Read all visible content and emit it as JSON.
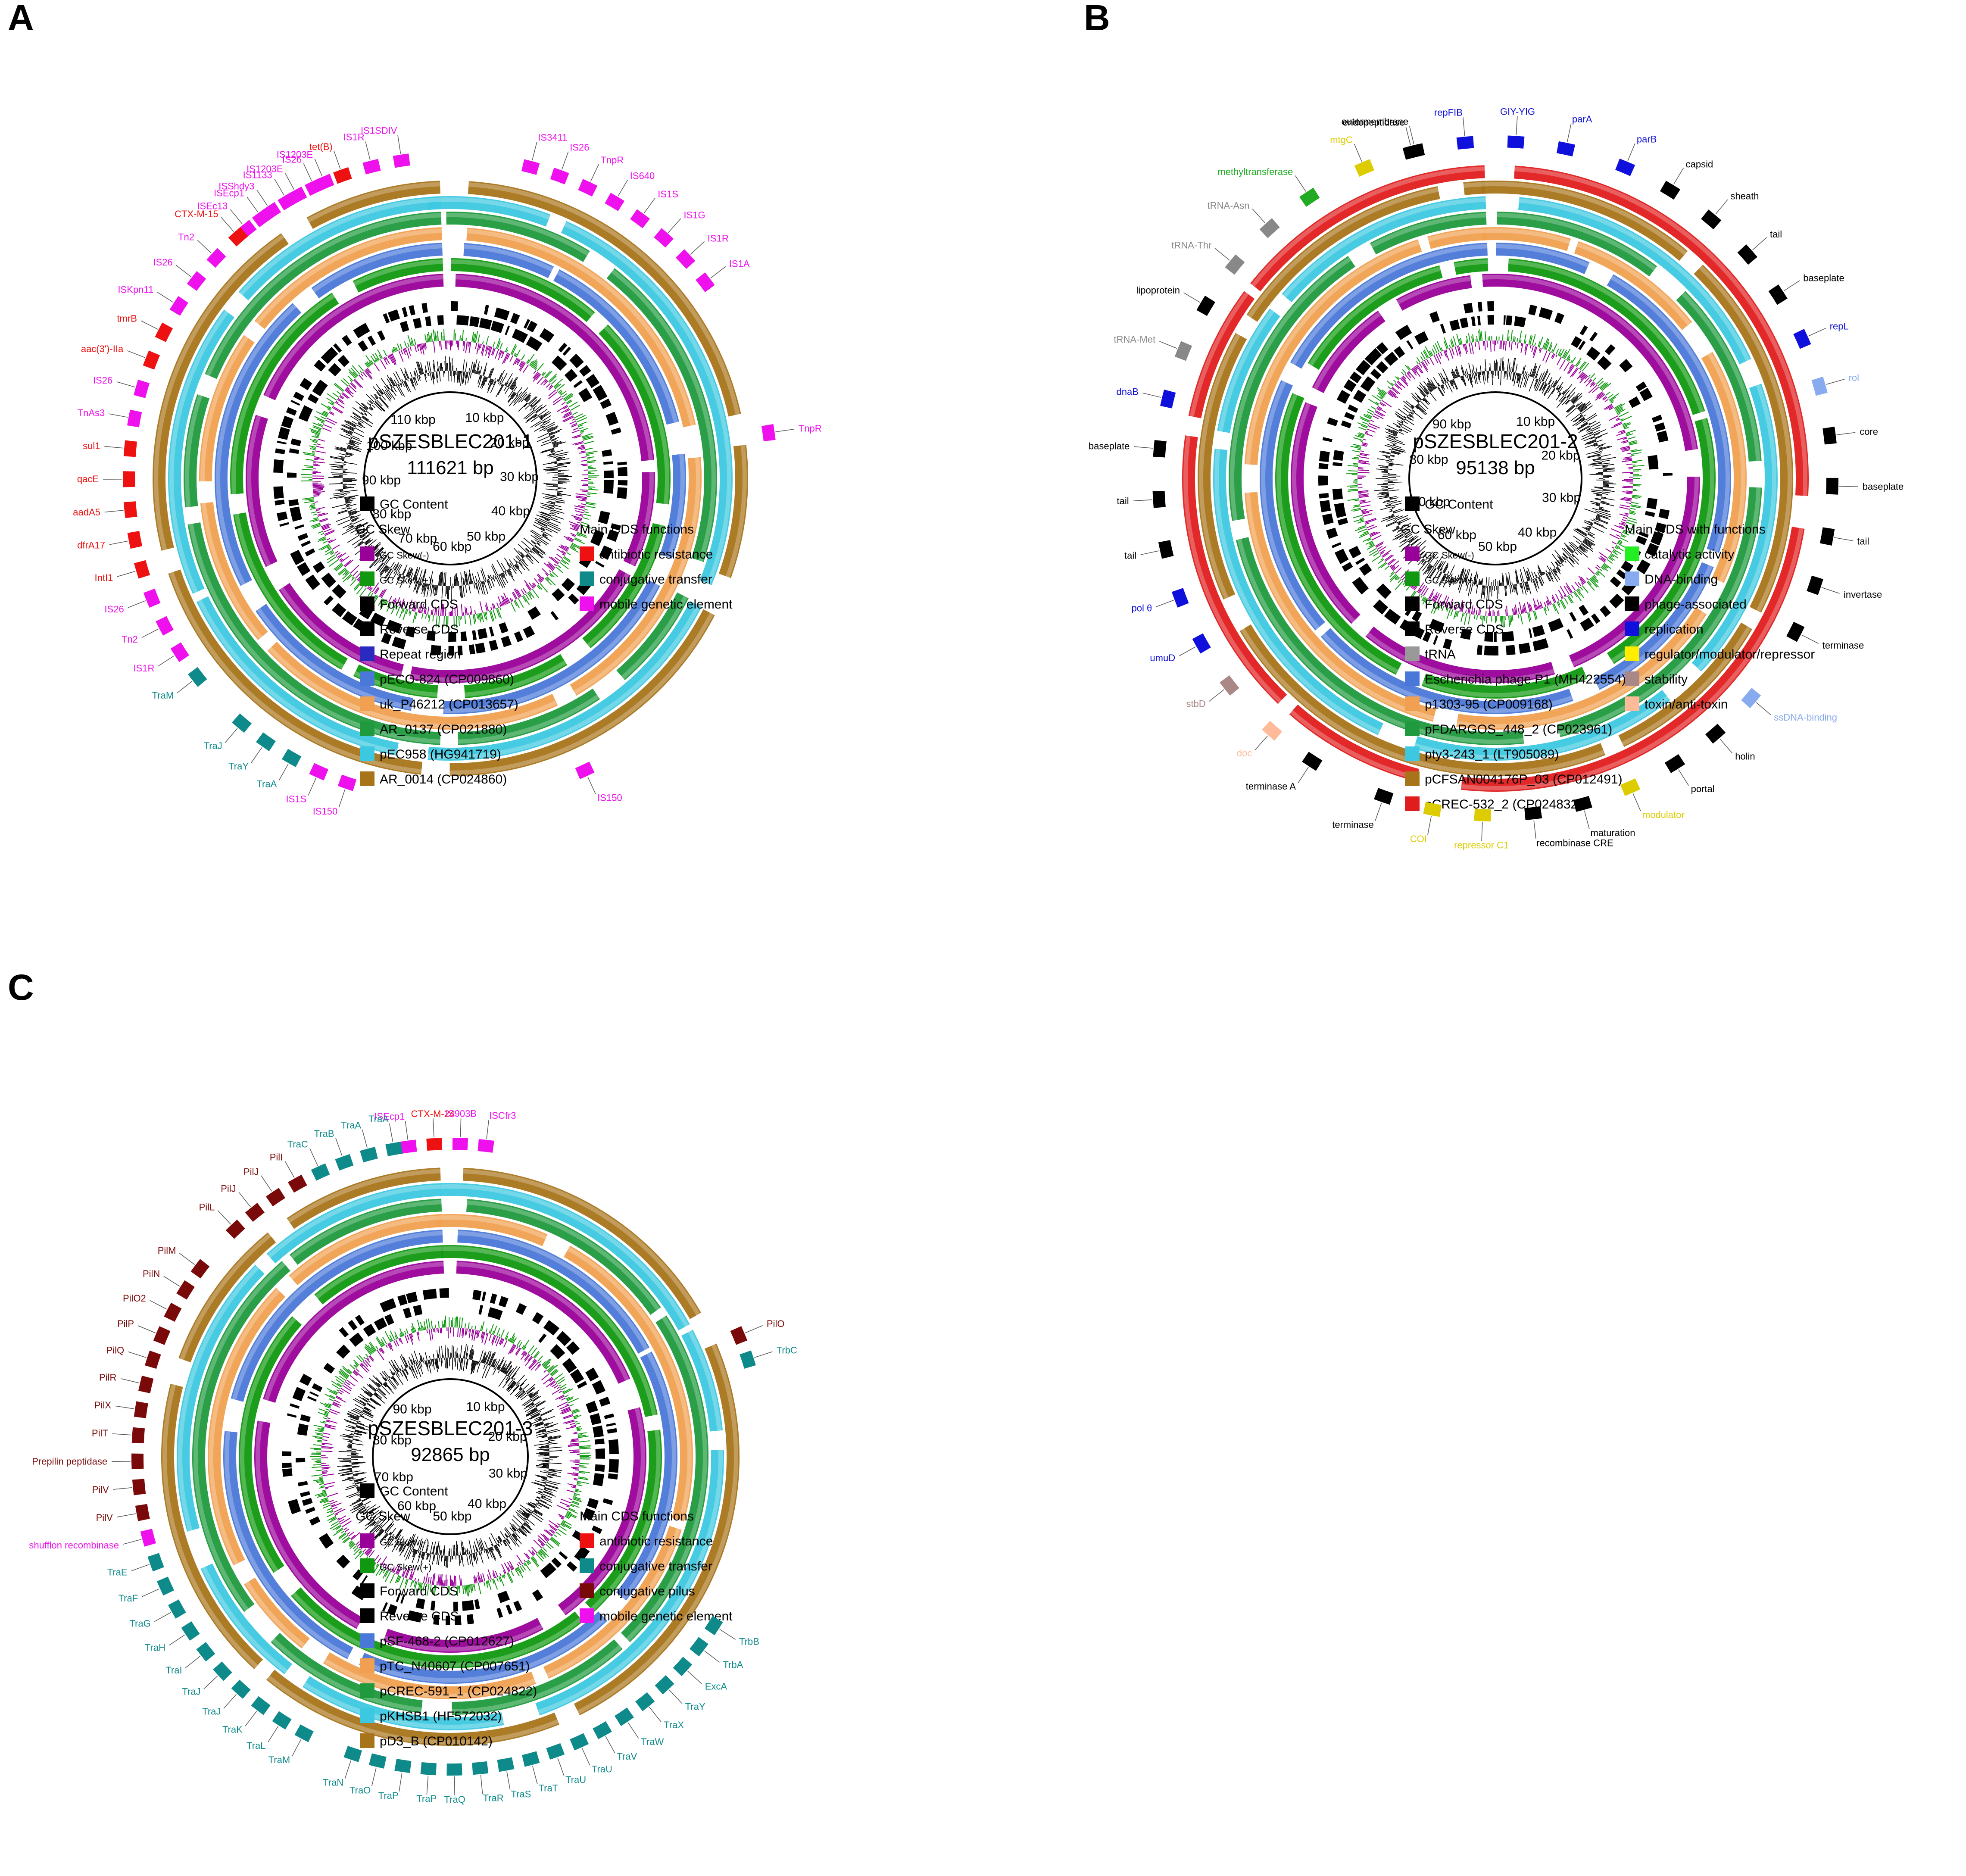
{
  "panels": [
    {
      "letter": "A",
      "name": "pSZESBLEC201-1",
      "size": "111621 bp",
      "ticks": [
        "10 kbp",
        "20 kbp",
        "30 kbp",
        "40 kbp",
        "50 kbp",
        "60 kbp",
        "70 kbp",
        "80 kbp",
        "90 kbp",
        "100 kbp",
        "110 kbp"
      ],
      "legend_left": [
        {
          "label": "GC Content",
          "color": "#000000",
          "small": false
        },
        {
          "label": "GC Skew",
          "color": "",
          "small": false
        },
        {
          "label": "GC Skew(-)",
          "color": "#990099",
          "small": true
        },
        {
          "label": "GC Skew(+)",
          "color": "#109910",
          "small": true
        },
        {
          "label": "Forward CDS",
          "color": "#000000",
          "small": false
        },
        {
          "label": "Reverse CDS",
          "color": "#000000",
          "small": false
        },
        {
          "label": "Repeat region",
          "color": "#2a2ac0",
          "small": false
        },
        {
          "label": "pECO-824 (CP009860)",
          "color": "#4a78d8",
          "small": false
        },
        {
          "label": "uk_P46212 (CP013657)",
          "color": "#f0a050",
          "small": false
        },
        {
          "label": "AR_0137 (CP021880)",
          "color": "#1f9a3e",
          "small": false
        },
        {
          "label": "pEC958 (HG941719)",
          "color": "#3cc8e0",
          "small": false
        },
        {
          "label": "AR_0014 (CP024860)",
          "color": "#a8741a",
          "small": false
        }
      ],
      "legend_right": [
        {
          "label": "Main CDS functions",
          "color": ""
        },
        {
          "label": "antibiotic resistance",
          "color": "#ee1111"
        },
        {
          "label": "conjugative transfer",
          "color": "#0e8a8a"
        },
        {
          "label": "mobile genetic element",
          "color": "#ee11ee"
        }
      ],
      "genes": [
        {
          "label": "ISEc13",
          "color": "#ee11ee"
        },
        {
          "label": "ISShdy3",
          "color": "#ee11ee"
        },
        {
          "label": "IS1203E",
          "color": "#ee11ee"
        },
        {
          "label": "IS1203E",
          "color": "#ee11ee"
        },
        {
          "label": "IS3411",
          "color": "#ee11ee"
        },
        {
          "label": "IS26",
          "color": "#ee11ee"
        },
        {
          "label": "TnpR",
          "color": "#ee11ee"
        },
        {
          "label": "IS640",
          "color": "#ee11ee"
        },
        {
          "label": "IS1S",
          "color": "#ee11ee"
        },
        {
          "label": "IS1G",
          "color": "#ee11ee"
        },
        {
          "label": "IS1R",
          "color": "#ee11ee"
        },
        {
          "label": "IS1A",
          "color": "#ee11ee"
        },
        {
          "label": "TnpR",
          "color": "#ee11ee"
        },
        {
          "label": "IS150",
          "color": "#ee11ee"
        },
        {
          "label": "IS150",
          "color": "#ee11ee"
        },
        {
          "label": "IS1S",
          "color": "#ee11ee"
        },
        {
          "label": "TraA",
          "color": "#0e8a8a"
        },
        {
          "label": "TraY",
          "color": "#0e8a8a"
        },
        {
          "label": "TraJ",
          "color": "#0e8a8a"
        },
        {
          "label": "TraM",
          "color": "#0e8a8a"
        },
        {
          "label": "IS1R",
          "color": "#ee11ee"
        },
        {
          "label": "Tn2",
          "color": "#ee11ee"
        },
        {
          "label": "IS26",
          "color": "#ee11ee"
        },
        {
          "label": "IntI1",
          "color": "#ee1111"
        },
        {
          "label": "dfrA17",
          "color": "#ee1111"
        },
        {
          "label": "aadA5",
          "color": "#ee1111"
        },
        {
          "label": "qacE",
          "color": "#ee1111"
        },
        {
          "label": "sul1",
          "color": "#ee1111"
        },
        {
          "label": "TnAs3",
          "color": "#ee11ee"
        },
        {
          "label": "IS26",
          "color": "#ee11ee"
        },
        {
          "label": "aac(3')-IIa",
          "color": "#ee1111"
        },
        {
          "label": "tmrB",
          "color": "#ee1111"
        },
        {
          "label": "ISKpn11",
          "color": "#ee11ee"
        },
        {
          "label": "IS26",
          "color": "#ee11ee"
        },
        {
          "label": "Tn2",
          "color": "#ee11ee"
        },
        {
          "label": "CTX-M-15",
          "color": "#ee1111"
        },
        {
          "label": "ISEcp1",
          "color": "#ee11ee"
        },
        {
          "label": "IS1133",
          "color": "#ee11ee"
        },
        {
          "label": "IS26",
          "color": "#ee11ee"
        },
        {
          "label": "tet(B)",
          "color": "#ee1111"
        },
        {
          "label": "IS1R",
          "color": "#ee11ee"
        },
        {
          "label": "IS1SDIV",
          "color": "#ee11ee"
        }
      ]
    },
    {
      "letter": "B",
      "name": "pSZESBLEC201-2",
      "size": "95138 bp",
      "ticks": [
        "10 kbp",
        "20 kbp",
        "30 kbp",
        "40 kbp",
        "50 kbp",
        "60 kbp",
        "70 kbp",
        "80 kbp",
        "90 kbp"
      ],
      "legend_left": [
        {
          "label": "GC Content",
          "color": "#000000",
          "small": false
        },
        {
          "label": "GC Skew",
          "color": "",
          "small": false
        },
        {
          "label": "GC Skew(-)",
          "color": "#990099",
          "small": true
        },
        {
          "label": "GC Skew(+)",
          "color": "#109910",
          "small": true
        },
        {
          "label": "Forward CDS",
          "color": "#000000",
          "small": false
        },
        {
          "label": "Reverse CDS",
          "color": "#000000",
          "small": false
        },
        {
          "label": "tRNA",
          "color": "#999999",
          "small": false
        },
        {
          "label": "Escherichia phage P1 (MH422554)",
          "color": "#4a78d8",
          "small": false
        },
        {
          "label": "p1303-95 (CP009168)",
          "color": "#f0a050",
          "small": false
        },
        {
          "label": "pFDARGOS_448_2 (CP023961)",
          "color": "#1f9a3e",
          "small": false
        },
        {
          "label": "pty3-243_1 (LT905089)",
          "color": "#3cc8e0",
          "small": false
        },
        {
          "label": "pCFSAN004176P_03 (CP012491)",
          "color": "#a8741a",
          "small": false
        },
        {
          "label": "pCREC-532_2 (CP024832)",
          "color": "#e01c1c",
          "small": false
        }
      ],
      "legend_right": [
        {
          "label": "Main CDS with functions",
          "color": ""
        },
        {
          "label": "catalytic activity",
          "color": "#22ee22"
        },
        {
          "label": "DNA-binding",
          "color": "#88aaee"
        },
        {
          "label": "phage-associated",
          "color": "#000000"
        },
        {
          "label": "replication",
          "color": "#1010dd"
        },
        {
          "label": "regulator/modulator/repressor",
          "color": "#ffee00"
        },
        {
          "label": "stability",
          "color": "#aa8888"
        },
        {
          "label": "toxin/anti-toxin",
          "color": "#ffbb99"
        }
      ],
      "genes": [
        {
          "label": "outermembrane",
          "color": "#000000"
        },
        {
          "label": "repFIB",
          "color": "#1010dd"
        },
        {
          "label": "GIY-YIG",
          "color": "#1010dd"
        },
        {
          "label": "parA",
          "color": "#1010dd"
        },
        {
          "label": "parB",
          "color": "#1010dd"
        },
        {
          "label": "capsid",
          "color": "#000000"
        },
        {
          "label": "sheath",
          "color": "#000000"
        },
        {
          "label": "tail",
          "color": "#000000"
        },
        {
          "label": "baseplate",
          "color": "#000000"
        },
        {
          "label": "repL",
          "color": "#1010dd"
        },
        {
          "label": "rol",
          "color": "#88aaee"
        },
        {
          "label": "core",
          "color": "#000000"
        },
        {
          "label": "baseplate",
          "color": "#000000"
        },
        {
          "label": "tail",
          "color": "#000000"
        },
        {
          "label": "invertase",
          "color": "#000000"
        },
        {
          "label": "terminase",
          "color": "#000000"
        },
        {
          "label": "ssDNA-binding",
          "color": "#88aaee"
        },
        {
          "label": "holin",
          "color": "#000000"
        },
        {
          "label": "portal",
          "color": "#000000"
        },
        {
          "label": "modulator",
          "color": "#ddcc00"
        },
        {
          "label": "maturation",
          "color": "#000000"
        },
        {
          "label": "recombinase CRE",
          "color": "#000000"
        },
        {
          "label": "repressor C1",
          "color": "#ddcc00"
        },
        {
          "label": "COI",
          "color": "#ddcc00"
        },
        {
          "label": "terminase",
          "color": "#000000"
        },
        {
          "label": "terminase A",
          "color": "#000000"
        },
        {
          "label": "doc",
          "color": "#ffbb99"
        },
        {
          "label": "stbD",
          "color": "#aa8888"
        },
        {
          "label": "umuD",
          "color": "#1010dd"
        },
        {
          "label": "pol θ",
          "color": "#1010dd"
        },
        {
          "label": "tail",
          "color": "#000000"
        },
        {
          "label": "tail",
          "color": "#000000"
        },
        {
          "label": "baseplate",
          "color": "#000000"
        },
        {
          "label": "dnaB",
          "color": "#1010dd"
        },
        {
          "label": "tRNA-Met",
          "color": "#888888"
        },
        {
          "label": "lipoprotein",
          "color": "#000000"
        },
        {
          "label": "tRNA-Thr",
          "color": "#888888"
        },
        {
          "label": "tRNA-Asn",
          "color": "#888888"
        },
        {
          "label": "methyltransferase",
          "color": "#22aa22"
        },
        {
          "label": "mtgC",
          "color": "#ddcc00"
        },
        {
          "label": "endopeptidase",
          "color": "#000000"
        }
      ]
    },
    {
      "letter": "C",
      "name": "pSZESBLEC201-3",
      "size": "92865 bp",
      "ticks": [
        "10 kbp",
        "20 kbp",
        "30 kbp",
        "40 kbp",
        "50 kbp",
        "60 kbp",
        "70 kbp",
        "80 kbp",
        "90 kbp"
      ],
      "legend_left": [
        {
          "label": "GC Content",
          "color": "#000000",
          "small": false
        },
        {
          "label": "GC Skew",
          "color": "",
          "small": false
        },
        {
          "label": "GC Skew(-)",
          "color": "#990099",
          "small": true
        },
        {
          "label": "GC Skew(+)",
          "color": "#109910",
          "small": true
        },
        {
          "label": "Forward CDS",
          "color": "#000000",
          "small": false
        },
        {
          "label": "Reverse CDS",
          "color": "#000000",
          "small": false
        },
        {
          "label": "pSF-468-2 (CP012627)",
          "color": "#4a78d8",
          "small": false
        },
        {
          "label": "pTC_N40607 (CP007651)",
          "color": "#f0a050",
          "small": false
        },
        {
          "label": "pCREC-591_1 (CP024822)",
          "color": "#1f9a3e",
          "small": false
        },
        {
          "label": "pKHSB1 (HF572032)",
          "color": "#3cc8e0",
          "small": false
        },
        {
          "label": "pD3_B (CP010142)",
          "color": "#a8741a",
          "small": false
        }
      ],
      "legend_right": [
        {
          "label": "Main CDS functions",
          "color": ""
        },
        {
          "label": "antibiotic resistance",
          "color": "#ee1111"
        },
        {
          "label": "conjugative transfer",
          "color": "#0e8a8a"
        },
        {
          "label": "conjugative pilus",
          "color": "#7a0a0a"
        },
        {
          "label": "mobile genetic element",
          "color": "#ee11ee"
        }
      ],
      "genes": [
        {
          "label": "ISEcp1",
          "color": "#ee11ee"
        },
        {
          "label": "CTX-M-24",
          "color": "#ee1111"
        },
        {
          "label": "IS903B",
          "color": "#ee11ee"
        },
        {
          "label": "ISCfr3",
          "color": "#ee11ee"
        },
        {
          "label": "PilO",
          "color": "#7a0a0a"
        },
        {
          "label": "TrbC",
          "color": "#0e8a8a"
        },
        {
          "label": "TrbB",
          "color": "#0e8a8a"
        },
        {
          "label": "TrbA",
          "color": "#0e8a8a"
        },
        {
          "label": "ExcA",
          "color": "#0e8a8a"
        },
        {
          "label": "TraY",
          "color": "#0e8a8a"
        },
        {
          "label": "TraX",
          "color": "#0e8a8a"
        },
        {
          "label": "TraW",
          "color": "#0e8a8a"
        },
        {
          "label": "TraV",
          "color": "#0e8a8a"
        },
        {
          "label": "TraU",
          "color": "#0e8a8a"
        },
        {
          "label": "TraU",
          "color": "#0e8a8a"
        },
        {
          "label": "TraT",
          "color": "#0e8a8a"
        },
        {
          "label": "TraS",
          "color": "#0e8a8a"
        },
        {
          "label": "TraR",
          "color": "#0e8a8a"
        },
        {
          "label": "TraQ",
          "color": "#0e8a8a"
        },
        {
          "label": "TraP",
          "color": "#0e8a8a"
        },
        {
          "label": "TraP",
          "color": "#0e8a8a"
        },
        {
          "label": "TraO",
          "color": "#0e8a8a"
        },
        {
          "label": "TraN",
          "color": "#0e8a8a"
        },
        {
          "label": "TraM",
          "color": "#0e8a8a"
        },
        {
          "label": "TraL",
          "color": "#0e8a8a"
        },
        {
          "label": "TraK",
          "color": "#0e8a8a"
        },
        {
          "label": "TraJ",
          "color": "#0e8a8a"
        },
        {
          "label": "TraJ",
          "color": "#0e8a8a"
        },
        {
          "label": "TraI",
          "color": "#0e8a8a"
        },
        {
          "label": "TraH",
          "color": "#0e8a8a"
        },
        {
          "label": "TraG",
          "color": "#0e8a8a"
        },
        {
          "label": "TraF",
          "color": "#0e8a8a"
        },
        {
          "label": "TraE",
          "color": "#0e8a8a"
        },
        {
          "label": "shufflon recombinase",
          "color": "#ee11ee"
        },
        {
          "label": "PilV",
          "color": "#7a0a0a"
        },
        {
          "label": "PilV",
          "color": "#7a0a0a"
        },
        {
          "label": "Prepilin peptidase",
          "color": "#7a0a0a"
        },
        {
          "label": "PilT",
          "color": "#7a0a0a"
        },
        {
          "label": "PilX",
          "color": "#7a0a0a"
        },
        {
          "label": "PilR",
          "color": "#7a0a0a"
        },
        {
          "label": "PilQ",
          "color": "#7a0a0a"
        },
        {
          "label": "PilP",
          "color": "#7a0a0a"
        },
        {
          "label": "PilO2",
          "color": "#7a0a0a"
        },
        {
          "label": "PilN",
          "color": "#7a0a0a"
        },
        {
          "label": "PilM",
          "color": "#7a0a0a"
        },
        {
          "label": "PilL",
          "color": "#7a0a0a"
        },
        {
          "label": "PilJ",
          "color": "#7a0a0a"
        },
        {
          "label": "PilJ",
          "color": "#7a0a0a"
        },
        {
          "label": "PilI",
          "color": "#7a0a0a"
        },
        {
          "label": "TraC",
          "color": "#0e8a8a"
        },
        {
          "label": "TraB",
          "color": "#0e8a8a"
        },
        {
          "label": "TraA",
          "color": "#0e8a8a"
        },
        {
          "label": "TraA",
          "color": "#0e8a8a"
        }
      ]
    }
  ]
}
